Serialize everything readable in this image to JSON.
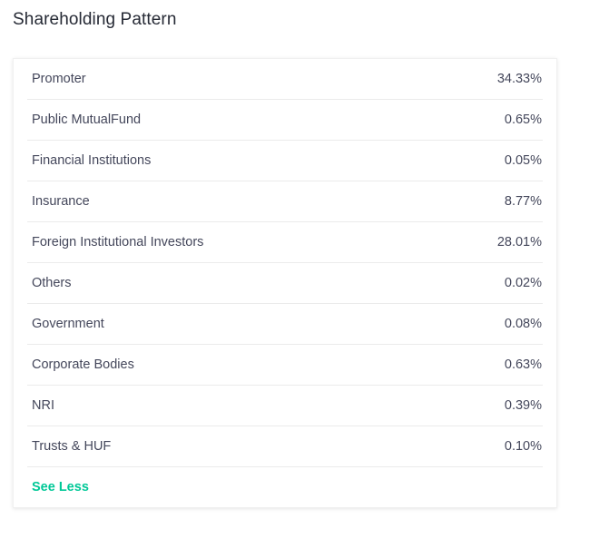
{
  "section": {
    "title": "Shareholding Pattern"
  },
  "shareholding": {
    "rows": [
      {
        "label": "Promoter",
        "value": "34.33%"
      },
      {
        "label": "Public MutualFund",
        "value": "0.65%"
      },
      {
        "label": "Financial Institutions",
        "value": "0.05%"
      },
      {
        "label": "Insurance",
        "value": "8.77%"
      },
      {
        "label": "Foreign Institutional Investors",
        "value": "28.01%"
      },
      {
        "label": "Others",
        "value": "0.02%"
      },
      {
        "label": "Government",
        "value": "0.08%"
      },
      {
        "label": "Corporate Bodies",
        "value": "0.63%"
      },
      {
        "label": "NRI",
        "value": "0.39%"
      },
      {
        "label": "Trusts & HUF",
        "value": "0.10%"
      }
    ],
    "toggle_label": "See Less"
  },
  "colors": {
    "accent": "#00c897",
    "text": "#44475b",
    "title": "#262a35",
    "divider": "#ebebeb"
  }
}
